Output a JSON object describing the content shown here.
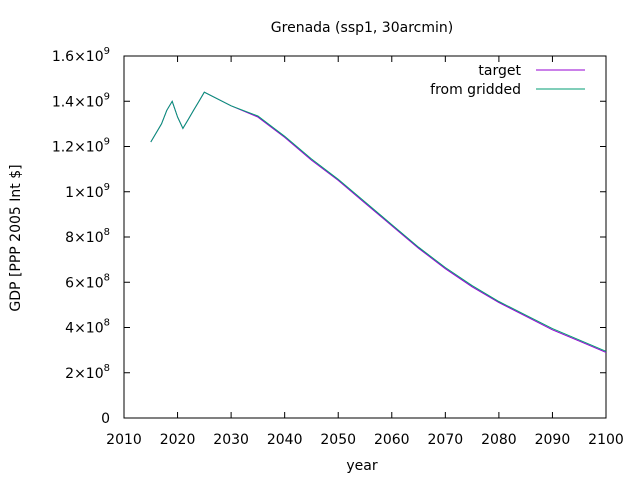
{
  "chart_data": {
    "type": "line",
    "title": "Grenada (ssp1, 30arcmin)",
    "xlabel": "year",
    "ylabel": "GDP [PPP 2005 Int $]",
    "xlim": [
      2010,
      2100
    ],
    "ylim": [
      0,
      1600000000
    ],
    "x_ticks": [
      2010,
      2020,
      2030,
      2040,
      2050,
      2060,
      2070,
      2080,
      2090,
      2100
    ],
    "y_ticks": [
      {
        "value": 0,
        "mantissa": "0",
        "exponent": ""
      },
      {
        "value": 200000000,
        "mantissa": "2×10",
        "exponent": "8"
      },
      {
        "value": 400000000,
        "mantissa": "4×10",
        "exponent": "8"
      },
      {
        "value": 600000000,
        "mantissa": "6×10",
        "exponent": "8"
      },
      {
        "value": 800000000,
        "mantissa": "8×10",
        "exponent": "8"
      },
      {
        "value": 1000000000,
        "mantissa": "1×10",
        "exponent": "9"
      },
      {
        "value": 1200000000,
        "mantissa": "1.2×10",
        "exponent": "9"
      },
      {
        "value": 1400000000,
        "mantissa": "1.4×10",
        "exponent": "9"
      },
      {
        "value": 1600000000,
        "mantissa": "1.6×10",
        "exponent": "9"
      }
    ],
    "grid": false,
    "legend_position": "top-right",
    "series": [
      {
        "name": "target",
        "color": "#9400d3",
        "x": [
          2015,
          2017,
          2018,
          2019,
          2020,
          2021,
          2022,
          2023,
          2024,
          2025,
          2030,
          2035,
          2040,
          2045,
          2050,
          2055,
          2060,
          2065,
          2070,
          2075,
          2080,
          2085,
          2090,
          2095,
          2100
        ],
        "y": [
          1220000000,
          1300000000,
          1360000000,
          1400000000,
          1330000000,
          1280000000,
          1320000000,
          1360000000,
          1400000000,
          1440000000,
          1380000000,
          1330000000,
          1240000000,
          1140000000,
          1050000000,
          950000000,
          850000000,
          750000000,
          660000000,
          580000000,
          510000000,
          450000000,
          390000000,
          340000000,
          290000000
        ]
      },
      {
        "name": "from gridded",
        "color": "#009e73",
        "x": [
          2015,
          2017,
          2018,
          2019,
          2020,
          2021,
          2022,
          2023,
          2024,
          2025,
          2030,
          2035,
          2040,
          2045,
          2050,
          2055,
          2060,
          2065,
          2070,
          2075,
          2080,
          2085,
          2090,
          2095,
          2100
        ],
        "y": [
          1220000000,
          1300000000,
          1360000000,
          1400000000,
          1330000000,
          1280000000,
          1320000000,
          1360000000,
          1400000000,
          1440000000,
          1380000000,
          1335000000,
          1245000000,
          1145000000,
          1055000000,
          955000000,
          855000000,
          755000000,
          665000000,
          585000000,
          515000000,
          455000000,
          395000000,
          345000000,
          295000000
        ]
      }
    ]
  }
}
